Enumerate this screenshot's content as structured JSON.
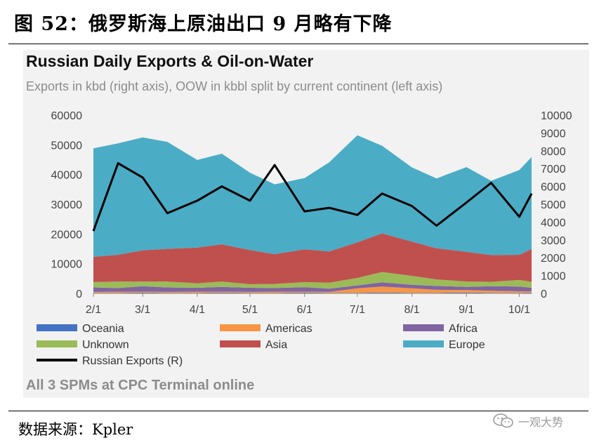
{
  "figure_title": "图 52：俄罗斯海上原油出口 9 月略有下降",
  "source_text": "数据来源：Kpler",
  "watermark_text": "一观大势",
  "watermark_icon": "wechat-icon",
  "chart_data": {
    "type": "area",
    "title": "Russian Daily Exports & Oil-on-Water",
    "subtitle": "Exports in kbd (right axis), OOW in kbbl split by current continent (left axis)",
    "note": "All 3 SPMs at CPC Terminal online",
    "x_ticks": [
      "2/1",
      "3/1",
      "4/1",
      "5/1",
      "6/1",
      "7/1",
      "8/1",
      "9/1",
      "10/1"
    ],
    "left_axis": {
      "ticks": [
        "0",
        "10000",
        "20000",
        "30000",
        "40000",
        "50000",
        "60000"
      ],
      "ylim": [
        0,
        60000
      ]
    },
    "right_axis": {
      "ticks": [
        "0",
        "1000",
        "2000",
        "3000",
        "4000",
        "5000",
        "6000",
        "7000",
        "8000",
        "9000",
        "10000"
      ],
      "ylim": [
        0,
        10000
      ]
    },
    "legend": [
      {
        "name": "Oceania",
        "color": "#4472c4",
        "kind": "area"
      },
      {
        "name": "Americas",
        "color": "#f79646",
        "kind": "area"
      },
      {
        "name": "Africa",
        "color": "#8064a2",
        "kind": "area"
      },
      {
        "name": "Unknown",
        "color": "#9bbb59",
        "kind": "area"
      },
      {
        "name": "Asia",
        "color": "#c0504d",
        "kind": "area"
      },
      {
        "name": "Europe",
        "color": "#4bacc6",
        "kind": "area"
      },
      {
        "name": "Russian Exports (R)",
        "color": "#000000",
        "kind": "line"
      }
    ],
    "x_dates": [
      "2/1",
      "2/15",
      "3/1",
      "3/15",
      "4/1",
      "4/15",
      "5/1",
      "5/15",
      "6/1",
      "6/15",
      "7/1",
      "7/15",
      "8/1",
      "8/15",
      "9/1",
      "9/15",
      "10/1",
      "10/8"
    ],
    "series": [
      {
        "name": "Oceania",
        "axis": "left",
        "values": [
          200,
          200,
          300,
          200,
          200,
          300,
          200,
          200,
          300,
          200,
          200,
          300,
          200,
          200,
          300,
          200,
          200,
          300
        ]
      },
      {
        "name": "Americas",
        "axis": "left",
        "values": [
          300,
          400,
          300,
          300,
          400,
          300,
          300,
          400,
          300,
          300,
          1500,
          2000,
          1500,
          1000,
          800,
          700,
          500,
          400
        ]
      },
      {
        "name": "Africa",
        "axis": "left",
        "values": [
          1500,
          1200,
          1800,
          1500,
          1300,
          1600,
          1400,
          1200,
          1500,
          1100,
          1000,
          1400,
          1200,
          1300,
          1100,
          1500,
          1600,
          1200
        ]
      },
      {
        "name": "Unknown",
        "axis": "left",
        "values": [
          1800,
          2200,
          1600,
          2000,
          1500,
          1800,
          1200,
          1400,
          1700,
          2000,
          2500,
          3500,
          3000,
          2200,
          1800,
          1500,
          2200,
          2000
        ]
      },
      {
        "name": "Asia",
        "axis": "left",
        "values": [
          8500,
          9000,
          10500,
          11000,
          12000,
          12500,
          11500,
          10000,
          11000,
          10500,
          12000,
          13000,
          11500,
          10500,
          10000,
          9000,
          8500,
          11000
        ]
      },
      {
        "name": "Europe",
        "axis": "left",
        "values": [
          36500,
          37500,
          38000,
          36000,
          29500,
          30500,
          26000,
          23500,
          24000,
          30000,
          36000,
          29500,
          25000,
          23500,
          28500,
          25000,
          28500,
          31000
        ]
      },
      {
        "name": "Russian Exports (R)",
        "axis": "right",
        "values": [
          3500,
          7300,
          6500,
          4500,
          5200,
          6000,
          5200,
          7200,
          4600,
          4800,
          4400,
          5600,
          4900,
          3800,
          5100,
          6200,
          4300,
          5600
        ]
      }
    ]
  }
}
